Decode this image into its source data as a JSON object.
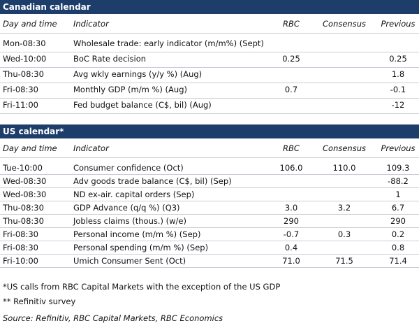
{
  "canadian": {
    "title": "Canadian calendar",
    "columns": [
      "Day and time",
      "Indicator",
      "RBC",
      "Consensus",
      "Previous"
    ],
    "rows": [
      [
        "Mon-08:30",
        "Wholesale trade: early indicator (m/m%) (Sept)",
        null,
        null,
        null
      ],
      [
        "Wed-10:00",
        "BoC Rate decision",
        "0.25",
        null,
        "0.25"
      ],
      [
        "Thu-08:30",
        "Avg wkly earnings (y/y %) (Aug)",
        null,
        null,
        "1.8"
      ],
      [
        "Fri-08:30",
        "Monthly GDP (m/m %) (Aug)",
        "0.7",
        null,
        "-0.1"
      ],
      [
        "Fri-11:00",
        "Fed budget balance (C$, bil) (Aug)",
        null,
        null,
        "-12"
      ]
    ]
  },
  "us": {
    "title": "US calendar*",
    "columns": [
      "Day and time",
      "Indicator",
      "RBC",
      "Consensus",
      "Previous"
    ],
    "rows": [
      [
        "Tue-10:00",
        "Consumer confidence (Oct)",
        "106.0",
        "110.0",
        "109.3"
      ],
      [
        "Wed-08:30",
        "Adv goods trade balance (C$, bil) (Sep)",
        null,
        null,
        "-88.2"
      ],
      [
        "Wed-08:30",
        "ND ex-air. capital orders (Sep)",
        null,
        null,
        "1"
      ],
      [
        "Thu-08:30",
        "GDP Advance (q/q %) (Q3)",
        "3.0",
        "3.2",
        "6.7"
      ],
      [
        "Thu-08:30",
        "Jobless claims (thous.) (w/e)",
        "290",
        null,
        "290"
      ],
      [
        "Fri-08:30",
        "Personal income (m/m %) (Sep)",
        "-0.7",
        "0.3",
        "0.2"
      ],
      [
        "Fri-08:30",
        "Personal spending (m/m %) (Sep)",
        "0.4",
        null,
        "0.8"
      ],
      [
        "Fri-10:00",
        "Umich Consumer Sent (Oct)",
        "71.0",
        "71.5",
        "71.4"
      ]
    ]
  },
  "footnotes": [
    "*US calls from RBC Capital Markets with the exception of the US GDP",
    "** Refinitiv survey"
  ],
  "source": "Source: Refinitiv, RBC Capital Markets, RBC Economics"
}
